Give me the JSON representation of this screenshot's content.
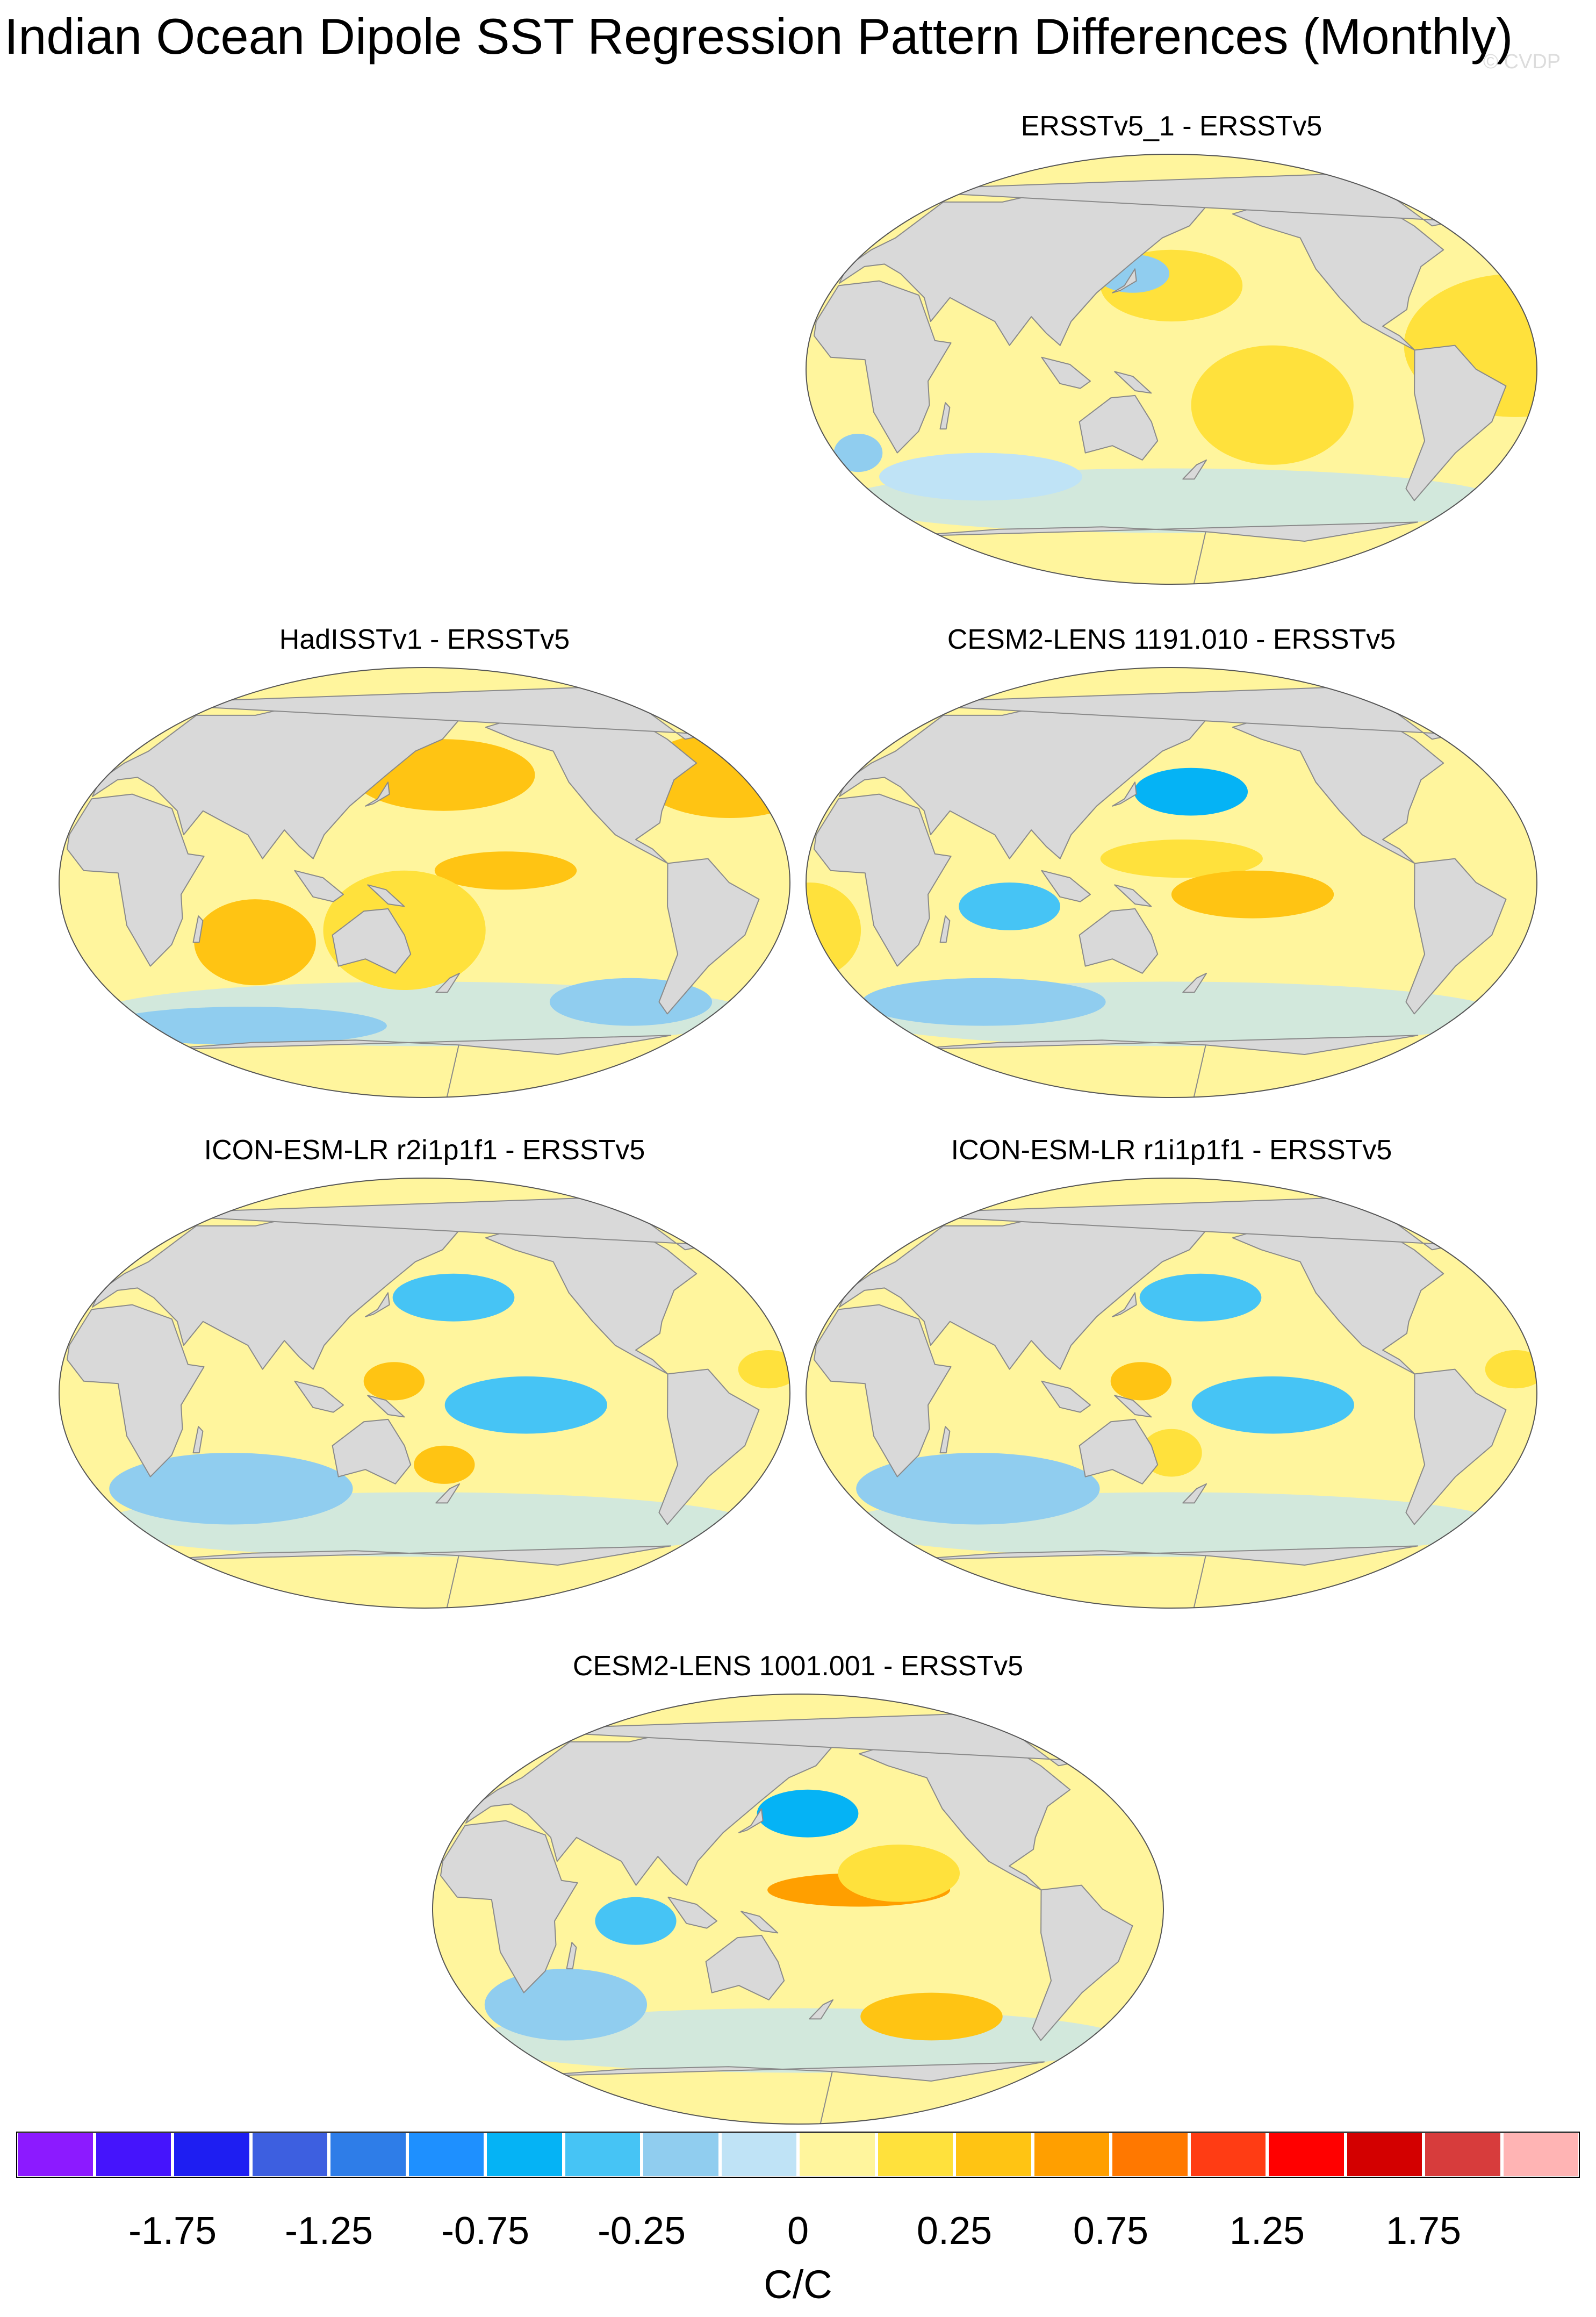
{
  "title": "Indian Ocean Dipole SST Regression Pattern Differences (Monthly)",
  "watermark": "© CVDP",
  "colors": {
    "land": "#d9d9d9",
    "coast": "#8a8a8a"
  },
  "panels": [
    {
      "id": "ersstv5-1",
      "title": "ERSSTv5_1 - ERSSTv5",
      "blobs": [
        {
          "lon": -30,
          "lat": 10,
          "rx": 55,
          "ry": 30,
          "level": 11
        },
        {
          "lon": 160,
          "lat": 35,
          "rx": 35,
          "ry": 15,
          "level": 11
        },
        {
          "lon": -150,
          "lat": -15,
          "rx": 40,
          "ry": 25,
          "level": 11
        },
        {
          "lon": 60,
          "lat": -45,
          "rx": 50,
          "ry": 10,
          "level": 9
        },
        {
          "lon": 0,
          "lat": -35,
          "rx": 12,
          "ry": 8,
          "level": 8
        },
        {
          "lon": 140,
          "lat": 40,
          "rx": 18,
          "ry": 8,
          "level": 8
        }
      ]
    },
    {
      "id": "hadisstv1",
      "title": "HadISSTv1 - ERSSTv5",
      "blobs": [
        {
          "lon": -40,
          "lat": 45,
          "rx": 45,
          "ry": 18,
          "level": 12
        },
        {
          "lon": 170,
          "lat": 45,
          "rx": 45,
          "ry": 15,
          "level": 12
        },
        {
          "lon": -160,
          "lat": 5,
          "rx": 35,
          "ry": 8,
          "level": 12
        },
        {
          "lon": 75,
          "lat": -25,
          "rx": 30,
          "ry": 18,
          "level": 12
        },
        {
          "lon": 150,
          "lat": -20,
          "rx": 40,
          "ry": 25,
          "level": 11
        },
        {
          "lon": 60,
          "lat": -60,
          "rx": 70,
          "ry": 8,
          "level": 8
        },
        {
          "lon": -90,
          "lat": -50,
          "rx": 40,
          "ry": 10,
          "level": 8
        }
      ]
    },
    {
      "id": "cesm2-1191",
      "title": "CESM2-LENS 1191.010 - ERSSTv5",
      "blobs": [
        {
          "lon": 170,
          "lat": 38,
          "rx": 28,
          "ry": 10,
          "level": 6
        },
        {
          "lon": 165,
          "lat": 10,
          "rx": 40,
          "ry": 8,
          "level": 11
        },
        {
          "lon": -160,
          "lat": -5,
          "rx": 40,
          "ry": 10,
          "level": 12
        },
        {
          "lon": 80,
          "lat": -10,
          "rx": 25,
          "ry": 10,
          "level": 7
        },
        {
          "lon": -20,
          "lat": -20,
          "rx": 25,
          "ry": 20,
          "level": 11
        },
        {
          "lon": 60,
          "lat": -50,
          "rx": 60,
          "ry": 10,
          "level": 8
        }
      ]
    },
    {
      "id": "icon-r2",
      "title": "ICON-ESM-LR r2i1p1f1 - ERSSTv5",
      "blobs": [
        {
          "lon": 175,
          "lat": 40,
          "rx": 30,
          "ry": 10,
          "level": 7
        },
        {
          "lon": 145,
          "lat": 5,
          "rx": 15,
          "ry": 8,
          "level": 12
        },
        {
          "lon": 170,
          "lat": -30,
          "rx": 15,
          "ry": 8,
          "level": 12
        },
        {
          "lon": -150,
          "lat": -5,
          "rx": 40,
          "ry": 12,
          "level": 7
        },
        {
          "lon": -30,
          "lat": 10,
          "rx": 15,
          "ry": 8,
          "level": 11
        },
        {
          "lon": 60,
          "lat": -40,
          "rx": 60,
          "ry": 15,
          "level": 8
        }
      ]
    },
    {
      "id": "icon-r1",
      "title": "ICON-ESM-LR r1i1p1f1 - ERSSTv5",
      "blobs": [
        {
          "lon": 175,
          "lat": 40,
          "rx": 30,
          "ry": 10,
          "level": 7
        },
        {
          "lon": 145,
          "lat": 5,
          "rx": 15,
          "ry": 8,
          "level": 12
        },
        {
          "lon": 160,
          "lat": -25,
          "rx": 15,
          "ry": 10,
          "level": 11
        },
        {
          "lon": -150,
          "lat": -5,
          "rx": 40,
          "ry": 12,
          "level": 7
        },
        {
          "lon": -30,
          "lat": 10,
          "rx": 15,
          "ry": 8,
          "level": 11
        },
        {
          "lon": 60,
          "lat": -40,
          "rx": 60,
          "ry": 15,
          "level": 8
        }
      ]
    },
    {
      "id": "cesm2-1001",
      "title": "CESM2-LENS 1001.001 - ERSSTv5",
      "blobs": [
        {
          "lon": 165,
          "lat": 40,
          "rx": 25,
          "ry": 10,
          "level": 6
        },
        {
          "lon": -170,
          "lat": 8,
          "rx": 45,
          "ry": 7,
          "level": 13
        },
        {
          "lon": -150,
          "lat": 15,
          "rx": 30,
          "ry": 12,
          "level": 11
        },
        {
          "lon": 80,
          "lat": -5,
          "rx": 20,
          "ry": 10,
          "level": 7
        },
        {
          "lon": -130,
          "lat": -45,
          "rx": 35,
          "ry": 10,
          "level": 12
        },
        {
          "lon": 40,
          "lat": -40,
          "rx": 40,
          "ry": 15,
          "level": 8
        }
      ]
    }
  ],
  "colorbar": {
    "colors": [
      "#8c1aff",
      "#4514fc",
      "#1e1ef2",
      "#3d5fe0",
      "#2e7de8",
      "#1e90ff",
      "#05b3f5",
      "#46c4f5",
      "#90cdef",
      "#bfe3f6",
      "#fff59d",
      "#ffe13c",
      "#ffc413",
      "#ff9f00",
      "#ff7800",
      "#ff3c14",
      "#ff0000",
      "#d30000",
      "#d73c3c",
      "#ffb4b4"
    ],
    "labels": [
      "-1.75",
      "-1.25",
      "-0.75",
      "-0.25",
      "0",
      "0.25",
      "0.75",
      "1.25",
      "1.75"
    ],
    "label_box_index": [
      1,
      3,
      5,
      7,
      9,
      11,
      13,
      15,
      17
    ],
    "units": "C/C"
  }
}
